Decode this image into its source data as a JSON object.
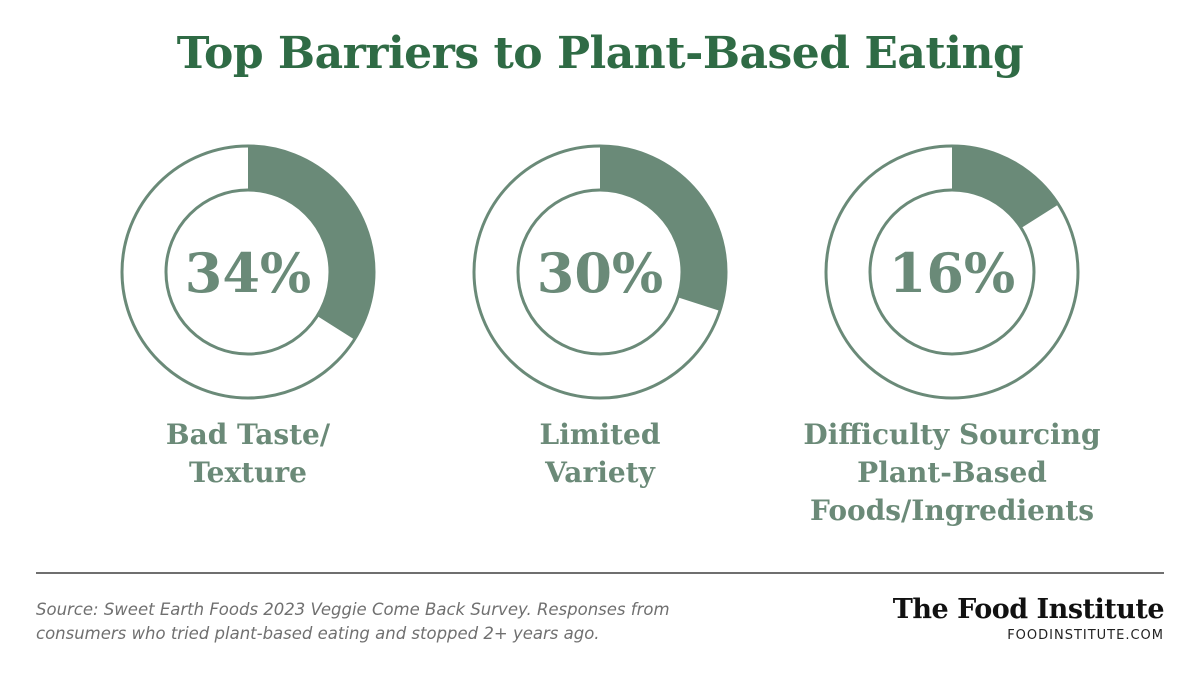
{
  "title": "Top Barriers to Plant-Based Eating",
  "colors": {
    "title": "#2f6b45",
    "fill": "#6a8a78",
    "ring": "#6a8a78",
    "label": "#6b8a78"
  },
  "chart_data": {
    "type": "pie",
    "variant": "donut",
    "title": "Top Barriers to Plant-Based Eating",
    "categories": [
      "Bad Taste/ Texture",
      "Limited Variety",
      "Difficulty Sourcing Plant-Based Foods/Ingredients"
    ],
    "values": [
      34,
      30,
      16
    ],
    "value_labels": [
      "34%",
      "30%",
      "16%"
    ],
    "label_lines": [
      [
        "Bad Taste/",
        "Texture"
      ],
      [
        "Limited",
        "Variety"
      ],
      [
        "Difficulty Sourcing",
        "Plant-Based",
        "Foods/Ingredients"
      ]
    ]
  },
  "source": {
    "lines": [
      "Source: Sweet Earth Foods 2023 Veggie Come Back Survey. Responses from",
      "consumers who tried plant-based eating and stopped 2+ years ago."
    ]
  },
  "brand": {
    "name": "The Food Institute",
    "url": "FOODINSTITUTE.COM"
  }
}
